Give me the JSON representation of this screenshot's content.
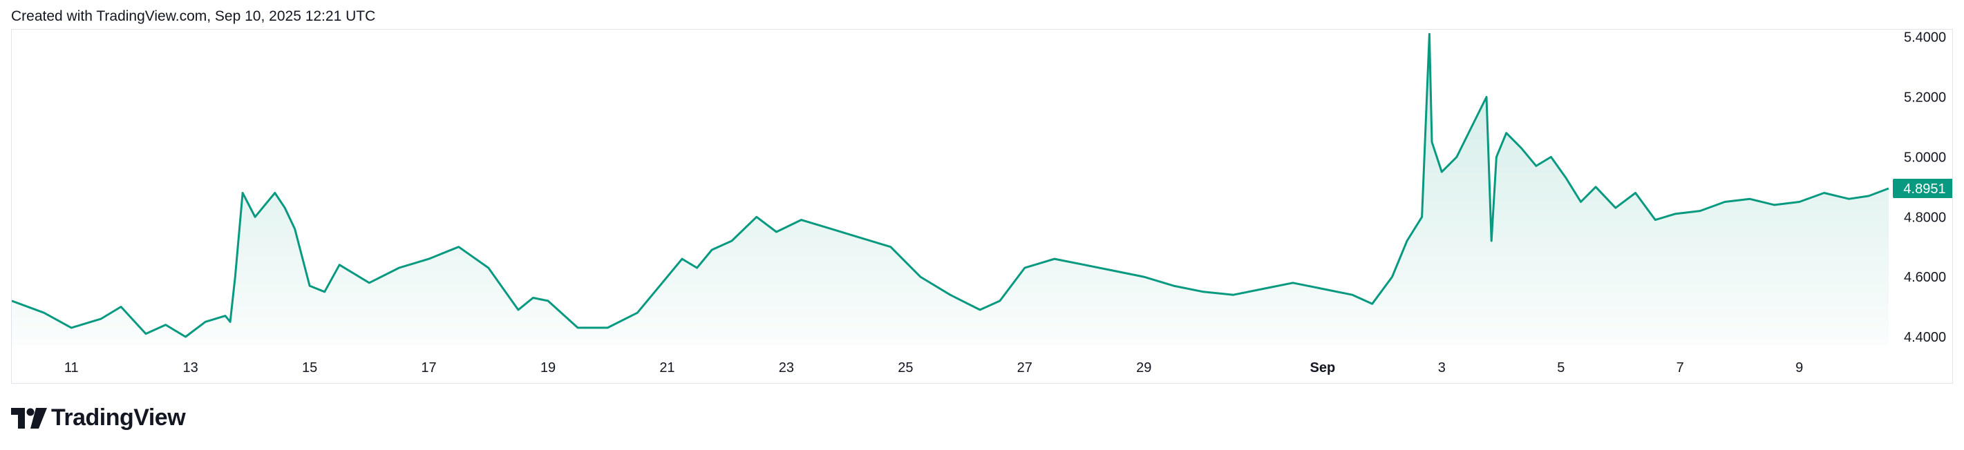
{
  "header": {
    "caption": "Created with TradingView.com, Sep 10, 2025 12:21 UTC"
  },
  "brand": {
    "name": "TradingView",
    "logo_icon": "tradingview-logo-icon"
  },
  "colors": {
    "line": "#089981",
    "area_top": "rgba(8,153,129,0.20)",
    "area_bottom": "rgba(8,153,129,0.02)",
    "price_label_bg": "#089981",
    "grid_border": "#e0e3eb",
    "text": "#131722"
  },
  "chart_data": {
    "type": "area",
    "x_unit": "date (Aug 10, 2025 – Sep 10, 2025)",
    "x": [
      "2025-08-10T00:00",
      "2025-08-10T13:00",
      "2025-08-11T00:00",
      "2025-08-11T12:00",
      "2025-08-11T20:00",
      "2025-08-12T06:00",
      "2025-08-12T14:00",
      "2025-08-12T22:00",
      "2025-08-13T06:00",
      "2025-08-13T14:00",
      "2025-08-13T16:00",
      "2025-08-13T18:00",
      "2025-08-13T21:00",
      "2025-08-14T02:00",
      "2025-08-14T06:00",
      "2025-08-14T10:00",
      "2025-08-14T14:00",
      "2025-08-14T18:00",
      "2025-08-15T00:00",
      "2025-08-15T06:00",
      "2025-08-15T12:00",
      "2025-08-16T00:00",
      "2025-08-16T12:00",
      "2025-08-17T00:00",
      "2025-08-17T12:00",
      "2025-08-18T00:00",
      "2025-08-18T12:00",
      "2025-08-18T18:00",
      "2025-08-19T00:00",
      "2025-08-19T12:00",
      "2025-08-20T00:00",
      "2025-08-20T12:00",
      "2025-08-20T22:00",
      "2025-08-21T06:00",
      "2025-08-21T12:00",
      "2025-08-21T18:00",
      "2025-08-22T02:00",
      "2025-08-22T12:00",
      "2025-08-22T20:00",
      "2025-08-23T06:00",
      "2025-08-23T18:00",
      "2025-08-24T06:00",
      "2025-08-24T18:00",
      "2025-08-25T06:00",
      "2025-08-25T18:00",
      "2025-08-26T06:00",
      "2025-08-26T14:00",
      "2025-08-27T00:00",
      "2025-08-27T12:00",
      "2025-08-28T00:00",
      "2025-08-28T12:00",
      "2025-08-29T00:00",
      "2025-08-29T12:00",
      "2025-08-30T00:00",
      "2025-08-30T12:00",
      "2025-08-31T00:00",
      "2025-08-31T12:00",
      "2025-09-01T00:00",
      "2025-09-01T12:00",
      "2025-09-01T20:00",
      "2025-09-02T04:00",
      "2025-09-02T10:00",
      "2025-09-02T16:00",
      "2025-09-02T19:00",
      "2025-09-02T20:00",
      "2025-09-03T00:00",
      "2025-09-03T06:00",
      "2025-09-03T12:00",
      "2025-09-03T18:00",
      "2025-09-03T20:00",
      "2025-09-03T22:00",
      "2025-09-04T02:00",
      "2025-09-04T08:00",
      "2025-09-04T14:00",
      "2025-09-04T20:00",
      "2025-09-05T02:00",
      "2025-09-05T08:00",
      "2025-09-05T14:00",
      "2025-09-05T22:00",
      "2025-09-06T06:00",
      "2025-09-06T14:00",
      "2025-09-06T22:00",
      "2025-09-07T08:00",
      "2025-09-07T18:00",
      "2025-09-08T04:00",
      "2025-09-08T14:00",
      "2025-09-09T00:00",
      "2025-09-09T10:00",
      "2025-09-09T20:00",
      "2025-09-10T04:00",
      "2025-09-10T12:00"
    ],
    "values": [
      4.52,
      4.48,
      4.43,
      4.46,
      4.5,
      4.41,
      4.44,
      4.4,
      4.45,
      4.47,
      4.45,
      4.6,
      4.88,
      4.8,
      4.84,
      4.88,
      4.83,
      4.76,
      4.57,
      4.55,
      4.64,
      4.58,
      4.63,
      4.66,
      4.7,
      4.63,
      4.49,
      4.53,
      4.52,
      4.43,
      4.43,
      4.48,
      4.58,
      4.66,
      4.63,
      4.69,
      4.72,
      4.8,
      4.75,
      4.79,
      4.76,
      4.73,
      4.7,
      4.6,
      4.54,
      4.49,
      4.52,
      4.63,
      4.66,
      4.64,
      4.62,
      4.6,
      4.57,
      4.55,
      4.54,
      4.56,
      4.58,
      4.56,
      4.54,
      4.51,
      4.6,
      4.72,
      4.8,
      5.41,
      5.05,
      4.95,
      5.0,
      5.1,
      5.2,
      4.72,
      5.0,
      5.08,
      5.03,
      4.97,
      5.0,
      4.93,
      4.85,
      4.9,
      4.83,
      4.88,
      4.79,
      4.81,
      4.82,
      4.85,
      4.86,
      4.84,
      4.85,
      4.88,
      4.86,
      4.87,
      4.895
    ],
    "last_value_label": "4.8951",
    "ylim": [
      4.37,
      5.42
    ],
    "y_ticks": [
      "4.4000",
      "4.6000",
      "4.8000",
      "5.0000",
      "5.2000",
      "5.4000"
    ],
    "x_ticks": [
      "11",
      "13",
      "15",
      "17",
      "19",
      "21",
      "23",
      "25",
      "27",
      "29",
      "Sep",
      "3",
      "5",
      "7",
      "9"
    ],
    "x_tick_dates": [
      "2025-08-11",
      "2025-08-13",
      "2025-08-15",
      "2025-08-17",
      "2025-08-19",
      "2025-08-21",
      "2025-08-23",
      "2025-08-25",
      "2025-08-27",
      "2025-08-29",
      "2025-09-01",
      "2025-09-03",
      "2025-09-05",
      "2025-09-07",
      "2025-09-09"
    ],
    "title": "",
    "xlabel": "",
    "ylabel": "",
    "grid": false,
    "legend": "none"
  }
}
